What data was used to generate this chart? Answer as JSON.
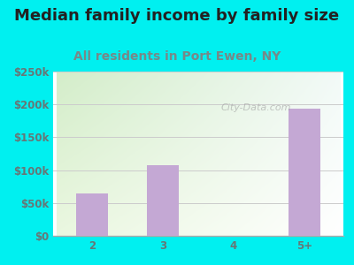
{
  "title": "Median family income by family size",
  "subtitle": "All residents in Port Ewen, NY",
  "categories": [
    "2",
    "3",
    "4",
    "5+"
  ],
  "values": [
    65000,
    108000,
    0,
    193000
  ],
  "bar_color": "#c4a8d4",
  "background_color": "#00f0f0",
  "title_color": "#222222",
  "subtitle_color": "#778888",
  "tick_color": "#667777",
  "ylim": [
    0,
    250000
  ],
  "yticks": [
    0,
    50000,
    100000,
    150000,
    200000,
    250000
  ],
  "ytick_labels": [
    "$0",
    "$50k",
    "$100k",
    "$150k",
    "$200k",
    "$250k"
  ],
  "watermark": "City-Data.com",
  "title_fontsize": 13,
  "subtitle_fontsize": 10,
  "tick_fontsize": 8.5
}
